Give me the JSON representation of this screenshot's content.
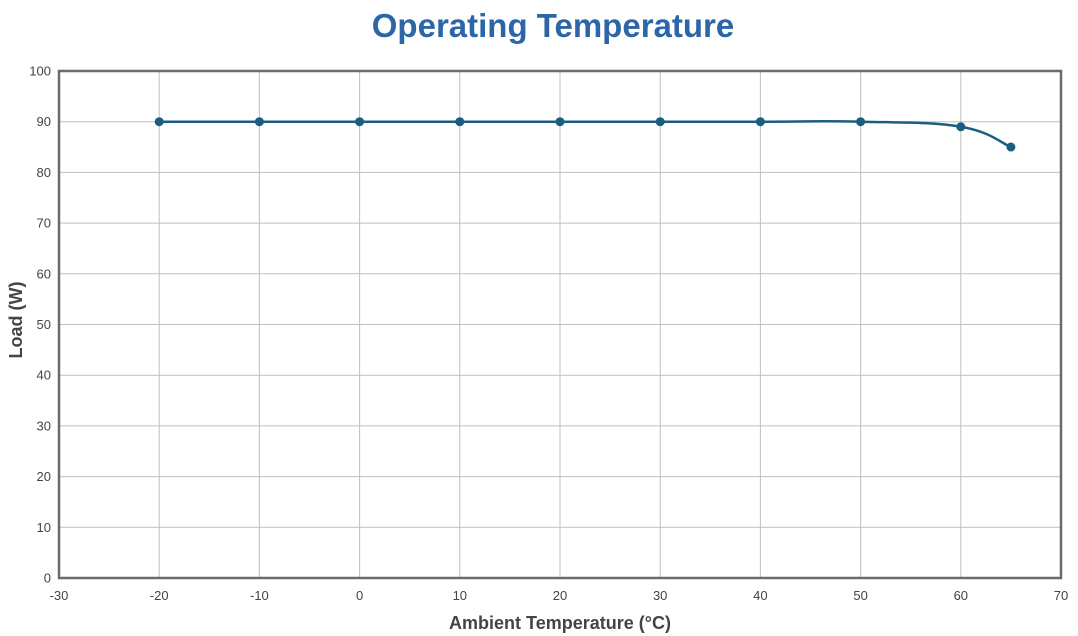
{
  "colors": {
    "title": "#2d66a8",
    "series": "#1b5e80",
    "grid": "#bfbfbf",
    "frame": "#6b6b6b"
  },
  "chart_data": {
    "type": "line",
    "title": "Operating Temperature",
    "xlabel": "Ambient Temperature (°C)",
    "ylabel": "Load (W)",
    "xlim": [
      -30,
      70
    ],
    "ylim": [
      0,
      100
    ],
    "x_ticks": [
      -30,
      -20,
      -10,
      0,
      10,
      20,
      30,
      40,
      50,
      60,
      70
    ],
    "y_ticks": [
      0,
      10,
      20,
      30,
      40,
      50,
      60,
      70,
      80,
      90,
      100
    ],
    "grid": true,
    "legend": "none",
    "series": [
      {
        "x": [
          -20,
          -10,
          0,
          10,
          20,
          30,
          40,
          50,
          60,
          65
        ],
        "y": [
          90,
          90,
          90,
          90,
          90,
          90,
          90,
          90,
          89,
          85
        ]
      }
    ]
  }
}
